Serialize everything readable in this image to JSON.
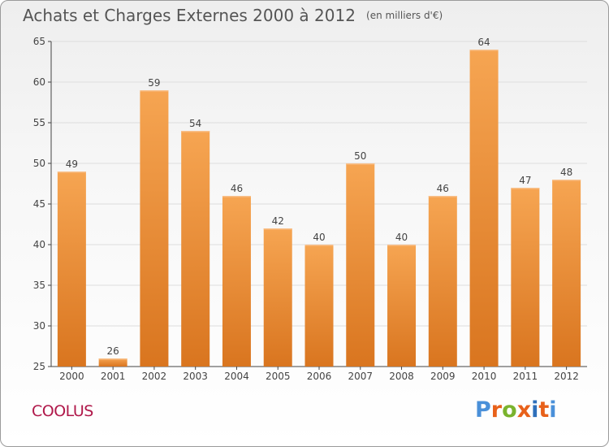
{
  "header": {
    "title": "Achats et Charges Externes 2000 à 2012",
    "unit": "(en milliers d'€)"
  },
  "footer": {
    "commune": "COOLUS",
    "logo": "Proxiti"
  },
  "colors": {
    "bar_top": "#f6a552",
    "bar_bottom": "#d9751f",
    "grid": "#dddddd",
    "axis": "#444444",
    "commune": "#b0184a",
    "logo_letters": [
      "#4a90d9",
      "#e8611a",
      "#7ab32e",
      "#e8611a",
      "#2f6fba",
      "#e8611a",
      "#4a90d9"
    ]
  },
  "chart_data": {
    "type": "bar",
    "title": "Achats et Charges Externes 2000 à 2012",
    "xlabel": "",
    "ylabel": "",
    "categories": [
      "2000",
      "2001",
      "2002",
      "2003",
      "2004",
      "2005",
      "2006",
      "2007",
      "2008",
      "2009",
      "2010",
      "2011",
      "2012"
    ],
    "values": [
      49,
      26,
      59,
      54,
      46,
      42,
      40,
      50,
      40,
      46,
      64,
      47,
      48
    ],
    "ylim": [
      25,
      65
    ],
    "yticks": [
      25,
      30,
      35,
      40,
      45,
      50,
      55,
      60,
      65
    ],
    "grid": true,
    "legend": "none"
  }
}
